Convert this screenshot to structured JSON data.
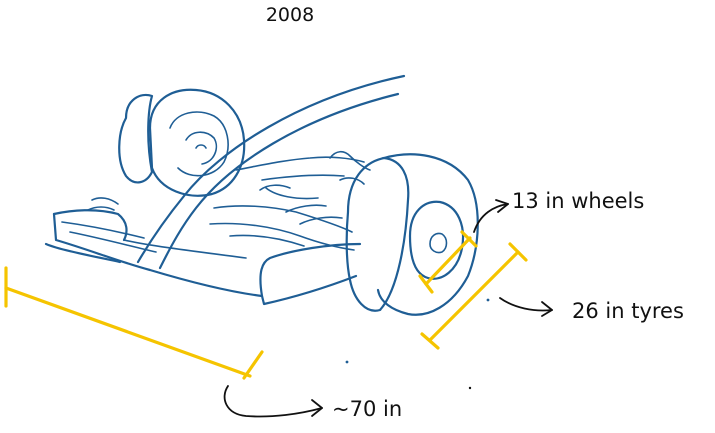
{
  "title": "2008",
  "annotations": {
    "wheel": "13 in wheels",
    "tyre": "26 in tyres",
    "wing": "~70 in"
  },
  "colors": {
    "car_ink": "#1f5e95",
    "dimension_lines": "#f5c400",
    "text": "#111111"
  }
}
